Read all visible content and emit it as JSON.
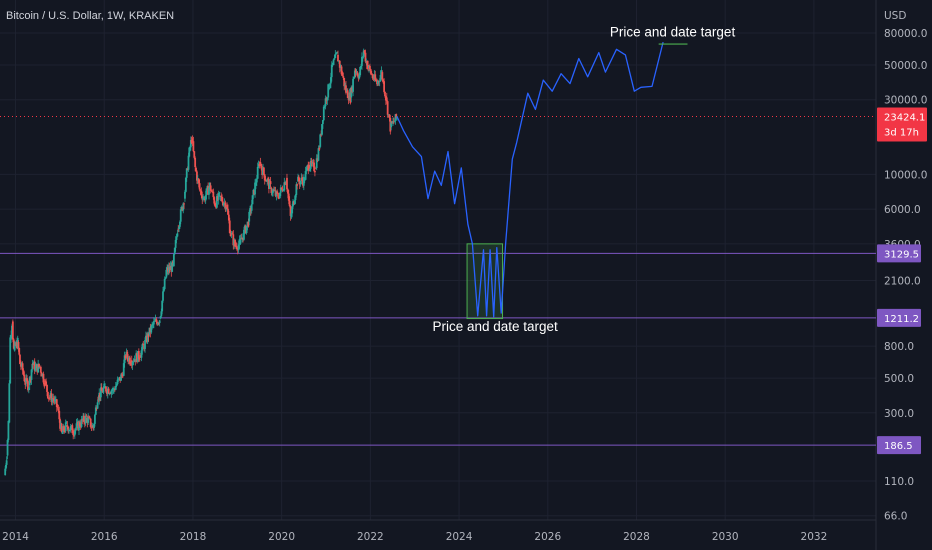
{
  "title": "Bitcoin / U.S. Dollar, 1W, KRAKEN",
  "colors": {
    "background": "#131722",
    "grid": "#1e2230",
    "up": "#26a69a",
    "down": "#ef5350",
    "projection": "#2962ff",
    "hline": "#7e57c2",
    "current_price": "#f23645",
    "box_stroke": "#4caf50",
    "box_fill": "rgba(76,175,80,0.18)"
  },
  "chart_data": {
    "type": "line",
    "symbol": "BTCUSD",
    "interval": "1W",
    "exchange": "KRAKEN",
    "yscale": "log",
    "ylabel": "USD",
    "xlim": [
      2013.65,
      2033.4
    ],
    "ylim": [
      62,
      130000
    ],
    "x_ticks": [
      2014,
      2016,
      2018,
      2020,
      2022,
      2024,
      2026,
      2028,
      2030,
      2032
    ],
    "x_tick_labels": [
      "2014",
      "2016",
      "2018",
      "2020",
      "2022",
      "2024",
      "2026",
      "2028",
      "2030",
      "2032"
    ],
    "y_ticks": [
      80000,
      50000,
      30000,
      10000,
      6000,
      3600,
      2100,
      800,
      500,
      300,
      110,
      66
    ],
    "y_tick_labels": [
      "80000.0",
      "50000.0",
      "30000.0",
      "10000.0",
      "6000.0",
      "3600.0",
      "2100.0",
      "800.0",
      "500.0",
      "300.0",
      "110.0",
      "66.0"
    ],
    "grid": true,
    "historical_price": {
      "style": "candlestick",
      "points": [
        [
          2013.75,
          120
        ],
        [
          2013.8,
          160
        ],
        [
          2013.84,
          260
        ],
        [
          2013.88,
          900
        ],
        [
          2013.92,
          1150
        ],
        [
          2013.96,
          750
        ],
        [
          2014.0,
          800
        ],
        [
          2014.05,
          850
        ],
        [
          2014.1,
          620
        ],
        [
          2014.16,
          560
        ],
        [
          2014.22,
          470
        ],
        [
          2014.3,
          450
        ],
        [
          2014.38,
          620
        ],
        [
          2014.45,
          580
        ],
        [
          2014.55,
          590
        ],
        [
          2014.65,
          480
        ],
        [
          2014.75,
          380
        ],
        [
          2014.85,
          370
        ],
        [
          2014.95,
          320
        ],
        [
          2015.04,
          220
        ],
        [
          2015.15,
          250
        ],
        [
          2015.3,
          230
        ],
        [
          2015.45,
          255
        ],
        [
          2015.6,
          280
        ],
        [
          2015.75,
          240
        ],
        [
          2015.85,
          380
        ],
        [
          2016.0,
          430
        ],
        [
          2016.2,
          420
        ],
        [
          2016.4,
          520
        ],
        [
          2016.48,
          700
        ],
        [
          2016.6,
          650
        ],
        [
          2016.8,
          700
        ],
        [
          2017.0,
          950
        ],
        [
          2017.1,
          1100
        ],
        [
          2017.25,
          1200
        ],
        [
          2017.4,
          2400
        ],
        [
          2017.55,
          2600
        ],
        [
          2017.65,
          4500
        ],
        [
          2017.8,
          7000
        ],
        [
          2017.9,
          13000
        ],
        [
          2017.97,
          17000
        ],
        [
          2018.05,
          11000
        ],
        [
          2018.15,
          8000
        ],
        [
          2018.25,
          7000
        ],
        [
          2018.38,
          8500
        ],
        [
          2018.5,
          6500
        ],
        [
          2018.6,
          7200
        ],
        [
          2018.75,
          6400
        ],
        [
          2018.85,
          4200
        ],
        [
          2018.95,
          3500
        ],
        [
          2019.05,
          3600
        ],
        [
          2019.25,
          5000
        ],
        [
          2019.4,
          8500
        ],
        [
          2019.5,
          12000
        ],
        [
          2019.6,
          10000
        ],
        [
          2019.75,
          8200
        ],
        [
          2019.9,
          7200
        ],
        [
          2020.0,
          8000
        ],
        [
          2020.1,
          9500
        ],
        [
          2020.2,
          5300
        ],
        [
          2020.35,
          9000
        ],
        [
          2020.5,
          9200
        ],
        [
          2020.6,
          11500
        ],
        [
          2020.75,
          11000
        ],
        [
          2020.85,
          15000
        ],
        [
          2020.95,
          27000
        ],
        [
          2021.05,
          35000
        ],
        [
          2021.15,
          50000
        ],
        [
          2021.25,
          58000
        ],
        [
          2021.35,
          45000
        ],
        [
          2021.45,
          34000
        ],
        [
          2021.55,
          31000
        ],
        [
          2021.65,
          47000
        ],
        [
          2021.75,
          43000
        ],
        [
          2021.85,
          62000
        ],
        [
          2021.93,
          50000
        ],
        [
          2022.05,
          42000
        ],
        [
          2022.15,
          38000
        ],
        [
          2022.25,
          45000
        ],
        [
          2022.35,
          31000
        ],
        [
          2022.45,
          20000
        ],
        [
          2022.55,
          22000
        ],
        [
          2022.6,
          23424.1
        ]
      ]
    },
    "projection": {
      "style": "line",
      "points": [
        [
          2022.6,
          23424.1
        ],
        [
          2022.75,
          19000
        ],
        [
          2022.95,
          15000
        ],
        [
          2023.15,
          13000
        ],
        [
          2023.3,
          7000
        ],
        [
          2023.45,
          10500
        ],
        [
          2023.6,
          8500
        ],
        [
          2023.75,
          14000
        ],
        [
          2023.9,
          6500
        ],
        [
          2024.05,
          11000
        ],
        [
          2024.2,
          4800
        ],
        [
          2024.3,
          3600
        ],
        [
          2024.42,
          1250
        ],
        [
          2024.55,
          3300
        ],
        [
          2024.62,
          1250
        ],
        [
          2024.7,
          3300
        ],
        [
          2024.78,
          1230
        ],
        [
          2024.85,
          3400
        ],
        [
          2024.95,
          1300
        ],
        [
          2025.05,
          3600
        ],
        [
          2025.2,
          12500
        ],
        [
          2025.3,
          16000
        ],
        [
          2025.55,
          33000
        ],
        [
          2025.72,
          26000
        ],
        [
          2025.9,
          40000
        ],
        [
          2026.1,
          34000
        ],
        [
          2026.3,
          44000
        ],
        [
          2026.5,
          38000
        ],
        [
          2026.7,
          55000
        ],
        [
          2026.9,
          42000
        ],
        [
          2027.15,
          60000
        ],
        [
          2027.3,
          45000
        ],
        [
          2027.55,
          63000
        ],
        [
          2027.75,
          58000
        ],
        [
          2027.95,
          34000
        ],
        [
          2028.1,
          36000
        ],
        [
          2028.35,
          36500
        ],
        [
          2028.6,
          70000
        ]
      ]
    },
    "horizontal_levels": [
      {
        "value": 3129.5,
        "label": "3129.5"
      },
      {
        "value": 1211.2,
        "label": "1211.2"
      },
      {
        "value": 186.5,
        "label": "186.5"
      }
    ],
    "current_price": {
      "value": 23424.1,
      "label": "23424.1",
      "countdown": "3d 17h"
    },
    "target_box": {
      "x0": 2024.18,
      "x1": 2024.98,
      "y0": 1200,
      "y1": 3600
    },
    "target_segment": {
      "x0": 2028.5,
      "x1": 2029.15,
      "value": 68000
    },
    "annotations": [
      {
        "text": "Price and date target",
        "x": 2027.4,
        "y": 76000
      },
      {
        "text": "Price and date target",
        "x": 2023.4,
        "y": 1000
      }
    ]
  }
}
